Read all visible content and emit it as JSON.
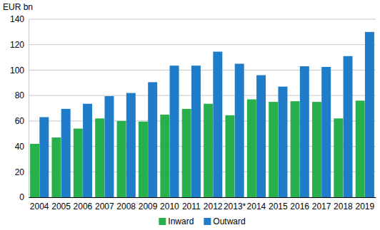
{
  "chart_data": {
    "type": "bar",
    "y_label": "EUR bn",
    "categories": [
      "2004",
      "2005",
      "2006",
      "2007",
      "2008",
      "2009",
      "2010",
      "2011",
      "2012",
      "2013*",
      "2014",
      "2015",
      "2016",
      "2017",
      "2018",
      "2019"
    ],
    "series": [
      {
        "name": "Inward",
        "color": "#27b04b",
        "values": [
          42,
          47,
          54,
          62,
          60,
          59.5,
          65,
          69.5,
          73.5,
          64.5,
          77,
          75,
          75.5,
          75,
          62,
          76
        ]
      },
      {
        "name": "Outward",
        "color": "#1f7cc8",
        "values": [
          63,
          69.5,
          73.5,
          79.5,
          82,
          90.5,
          103.5,
          103.5,
          114.5,
          105,
          96,
          87,
          103,
          102.5,
          111,
          130
        ]
      }
    ],
    "ylim": [
      0,
      140
    ],
    "yticks": [
      0,
      20,
      40,
      60,
      80,
      100,
      120,
      140
    ],
    "grid": true,
    "legend": "bottom"
  }
}
